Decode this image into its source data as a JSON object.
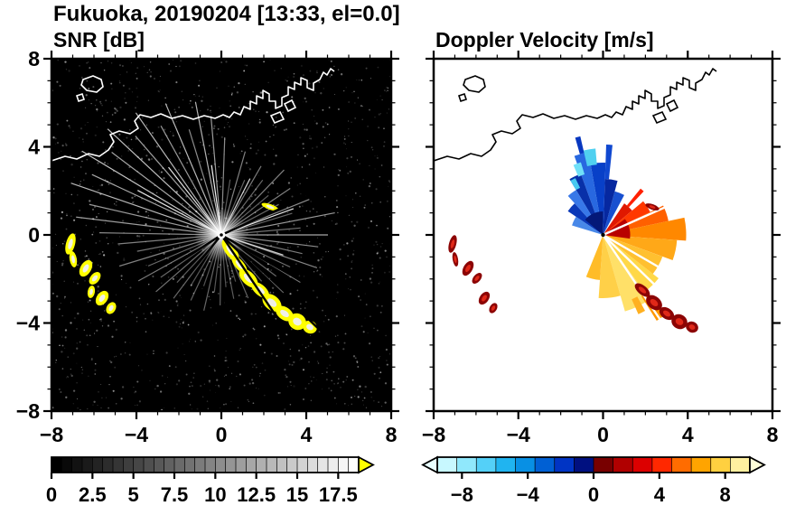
{
  "header": {
    "title": "Fukuoka, 20190204 [13:33, el=0.0]"
  },
  "chart_data": [
    {
      "id": "snr",
      "type": "heatmap",
      "title": "SNR [dB]",
      "xlabel": "",
      "ylabel": "",
      "xlim": [
        -8,
        8
      ],
      "ylim": [
        -8,
        8
      ],
      "xticks": [
        -8,
        -4,
        0,
        4,
        8
      ],
      "yticks": [
        -8,
        -4,
        0,
        4,
        8
      ],
      "minor_tick_step": 1,
      "background": "#000000",
      "coast_color": "#ffffff",
      "colorbar": {
        "range": [
          0,
          18.75
        ],
        "segments": 30,
        "scheme": "grayscale",
        "tick_labels": [
          0,
          2.5,
          5,
          7.5,
          10,
          12.5,
          15,
          17.5
        ],
        "over_arrow_color": "#ffff00"
      }
    },
    {
      "id": "vel",
      "type": "heatmap",
      "title": "Doppler Velocity [m/s]",
      "xlabel": "",
      "ylabel": "",
      "xlim": [
        -8,
        8
      ],
      "ylim": [
        -8,
        8
      ],
      "xticks": [
        -8,
        -4,
        0,
        4,
        8
      ],
      "yticks": [
        -8,
        -4,
        0,
        4,
        8
      ],
      "minor_tick_step": 1,
      "background": "#ffffff",
      "coast_color": "#000000",
      "colorbar": {
        "range": [
          -9.5,
          9.5
        ],
        "tick_labels": [
          -8,
          -4,
          0,
          4,
          8
        ],
        "colors": [
          "#c8f8ff",
          "#90e8fc",
          "#54d0f8",
          "#20b4f0",
          "#0890e4",
          "#0060d4",
          "#0034c4",
          "#001080",
          "#780000",
          "#b00000",
          "#dc0000",
          "#ff2800",
          "#ff6c00",
          "#ffa400",
          "#ffd040",
          "#fff0a0"
        ],
        "under_arrow_color": "#e8feff",
        "over_arrow_color": "#ffffd8"
      }
    }
  ],
  "map": {
    "coastline": [
      [
        0,
        113
      ],
      [
        15,
        108
      ],
      [
        28,
        111
      ],
      [
        41,
        105
      ],
      [
        53,
        108
      ],
      [
        63,
        101
      ],
      [
        69,
        92
      ],
      [
        65,
        84
      ],
      [
        75,
        80
      ],
      [
        87,
        83
      ],
      [
        96,
        77
      ],
      [
        92,
        69
      ],
      [
        98,
        62
      ],
      [
        110,
        65
      ],
      [
        121,
        61
      ],
      [
        133,
        66
      ],
      [
        145,
        63
      ],
      [
        157,
        67
      ],
      [
        169,
        63
      ],
      [
        181,
        66
      ],
      [
        190,
        62
      ],
      [
        197,
        65
      ],
      [
        202,
        59
      ],
      [
        209,
        62
      ],
      [
        213,
        53
      ],
      [
        220,
        56
      ],
      [
        220,
        47
      ],
      [
        227,
        50
      ],
      [
        227,
        41
      ],
      [
        234,
        44
      ],
      [
        234,
        35
      ],
      [
        241,
        39
      ],
      [
        241,
        47
      ],
      [
        248,
        47
      ],
      [
        248,
        55
      ],
      [
        255,
        52
      ],
      [
        255,
        43
      ],
      [
        262,
        40
      ],
      [
        262,
        31
      ],
      [
        269,
        34
      ],
      [
        269,
        26
      ],
      [
        276,
        29
      ],
      [
        276,
        21
      ],
      [
        283,
        24
      ],
      [
        283,
        32
      ],
      [
        290,
        35
      ],
      [
        290,
        27
      ],
      [
        297,
        23
      ],
      [
        301,
        15
      ],
      [
        305,
        18
      ],
      [
        309,
        11
      ],
      [
        313,
        14
      ]
    ],
    "islands": [
      [
        [
          35,
          23
        ],
        [
          46,
          19
        ],
        [
          55,
          23
        ],
        [
          57,
          31
        ],
        [
          50,
          37
        ],
        [
          39,
          35
        ],
        [
          33,
          29
        ]
      ],
      [
        [
          28,
          41
        ],
        [
          34,
          39
        ],
        [
          36,
          45
        ],
        [
          30,
          47
        ]
      ]
    ],
    "piers": [
      [
        [
          243,
          63
        ],
        [
          253,
          59
        ],
        [
          257,
          67
        ],
        [
          247,
          71
        ]
      ],
      [
        [
          258,
          50
        ],
        [
          266,
          46
        ],
        [
          270,
          54
        ],
        [
          262,
          58
        ]
      ]
    ]
  },
  "radar": {
    "snr": {
      "noise_count": 1300,
      "noise_seed": 11,
      "blob_color": "#ffff00",
      "blob_core_color": "#f0f0e8",
      "streaks": [
        [
          0,
          118,
          0.65
        ],
        [
          5,
          88,
          0.45
        ],
        [
          11,
          128,
          0.6
        ],
        [
          17,
          82,
          0.4
        ],
        [
          20,
          85,
          0.9
        ],
        [
          22,
          105,
          0.55
        ],
        [
          28,
          72,
          0.4
        ],
        [
          34,
          92,
          0.5
        ],
        [
          40,
          68,
          0.38
        ],
        [
          46,
          100,
          0.5
        ],
        [
          53,
          76,
          0.42
        ],
        [
          60,
          88,
          0.48
        ],
        [
          63,
          70,
          0.85
        ],
        [
          67,
          66,
          0.38
        ],
        [
          74,
          96,
          0.5
        ],
        [
          81,
          62,
          0.35
        ],
        [
          88,
          108,
          0.55
        ],
        [
          95,
          132,
          0.62
        ],
        [
          98,
          78,
          0.95
        ],
        [
          101,
          150,
          0.7
        ],
        [
          107,
          122,
          0.55
        ],
        [
          113,
          158,
          0.72
        ],
        [
          119,
          138,
          0.6
        ],
        [
          125,
          165,
          0.72
        ],
        [
          128,
          95,
          0.9
        ],
        [
          131,
          145,
          0.62
        ],
        [
          137,
          172,
          0.75
        ],
        [
          143,
          152,
          0.65
        ],
        [
          149,
          180,
          0.78
        ],
        [
          152,
          105,
          0.9
        ],
        [
          155,
          158,
          0.66
        ],
        [
          161,
          176,
          0.72
        ],
        [
          167,
          150,
          0.6
        ],
        [
          173,
          162,
          0.62
        ],
        [
          179,
          135,
          0.55
        ],
        [
          185,
          115,
          0.5
        ],
        [
          191,
          95,
          0.45
        ],
        [
          197,
          118,
          0.5
        ],
        [
          203,
          88,
          0.42
        ],
        [
          209,
          105,
          0.48
        ],
        [
          215,
          82,
          0.4
        ],
        [
          221,
          96,
          0.44
        ],
        [
          227,
          72,
          0.36
        ],
        [
          233,
          88,
          0.4
        ],
        [
          239,
          66,
          0.34
        ],
        [
          245,
          80,
          0.38
        ],
        [
          251,
          60,
          0.32
        ],
        [
          257,
          86,
          0.4
        ],
        [
          263,
          64,
          0.34
        ],
        [
          269,
          78,
          0.38
        ],
        [
          275,
          58,
          0.32
        ],
        [
          281,
          72,
          0.36
        ],
        [
          287,
          54,
          0.3
        ],
        [
          293,
          76,
          0.38
        ],
        [
          299,
          60,
          0.32
        ],
        [
          305,
          84,
          0.4
        ],
        [
          311,
          68,
          0.36
        ],
        [
          317,
          94,
          0.44
        ],
        [
          323,
          76,
          0.4
        ],
        [
          329,
          102,
          0.48
        ],
        [
          335,
          84,
          0.44
        ],
        [
          341,
          112,
          0.52
        ],
        [
          342,
          72,
          0.8
        ],
        [
          347,
          92,
          0.48
        ],
        [
          353,
          108,
          0.55
        ]
      ],
      "shadow_rays": [
        [
          -44,
          185
        ],
        [
          -56,
          150
        ],
        [
          -30,
          140
        ],
        [
          -129,
          110
        ],
        [
          24,
          140
        ],
        [
          -147,
          90
        ]
      ],
      "west_blobs": [
        [
          21,
          205,
          5,
          12,
          15
        ],
        [
          24,
          222,
          4,
          9,
          -10
        ],
        [
          38,
          232,
          6,
          10,
          30
        ],
        [
          48,
          243,
          5,
          8,
          40
        ],
        [
          44,
          258,
          4,
          7,
          10
        ],
        [
          56,
          265,
          6,
          9,
          35
        ],
        [
          66,
          276,
          5,
          7,
          30
        ]
      ],
      "chain_blobs": [
        [
          198,
          212,
          6,
          14,
          -35
        ],
        [
          208,
          228,
          5,
          12,
          -40
        ],
        [
          218,
          243,
          7,
          13,
          -45
        ],
        [
          231,
          256,
          6,
          12,
          -50
        ],
        [
          244,
          270,
          8,
          12,
          -50
        ],
        [
          258,
          282,
          7,
          11,
          -55
        ],
        [
          272,
          291,
          9,
          10,
          -60
        ],
        [
          286,
          297,
          7,
          8,
          -65
        ]
      ],
      "dash_blob": [
        242,
        164,
        10,
        3,
        20
      ]
    },
    "vel": {
      "blob_color": "#8c0404",
      "blob_core_color": "#e02818",
      "wedges": [
        [
          62,
          75,
          0,
          50,
          "#1850d0"
        ],
        [
          75,
          88,
          0,
          62,
          "#0628a0"
        ],
        [
          88,
          100,
          0,
          80,
          "#0840c8"
        ],
        [
          100,
          110,
          0,
          93,
          "#2868e0"
        ],
        [
          110,
          121,
          0,
          72,
          "#0830a8"
        ],
        [
          121,
          132,
          0,
          58,
          "#3878e8"
        ],
        [
          132,
          146,
          0,
          47,
          "#0a38b8"
        ],
        [
          146,
          163,
          0,
          36,
          "#4888e8"
        ],
        [
          90,
          140,
          0,
          26,
          "#041878"
        ],
        [
          95,
          103,
          78,
          96,
          "#50d0f0"
        ],
        [
          107,
          113,
          70,
          84,
          "#70e0f8"
        ],
        [
          116,
          121,
          58,
          70,
          "#48c8f0"
        ],
        [
          84,
          88,
          62,
          100,
          "#1048d0"
        ],
        [
          103,
          106,
          93,
          112,
          "#0838c0"
        ],
        [
          40,
          56,
          0,
          42,
          "#e01800"
        ],
        [
          26,
          40,
          0,
          58,
          "#ff3800"
        ],
        [
          12,
          26,
          0,
          74,
          "#ff6000"
        ],
        [
          -4,
          12,
          0,
          92,
          "#ff8800"
        ],
        [
          -20,
          -4,
          0,
          82,
          "#ffa818"
        ],
        [
          -38,
          -20,
          0,
          70,
          "#ffc030"
        ],
        [
          -8,
          36,
          0,
          30,
          "#b80000"
        ],
        [
          47,
          51,
          42,
          66,
          "#ff2000"
        ],
        [
          -54,
          -38,
          0,
          78,
          "#ffd848"
        ],
        [
          -74,
          -54,
          0,
          88,
          "#ffe068"
        ],
        [
          -94,
          -74,
          0,
          70,
          "#ffd048"
        ],
        [
          -112,
          -94,
          0,
          50,
          "#ffbc28"
        ],
        [
          -58,
          -52,
          80,
          112,
          "#ff9800"
        ],
        [
          -66,
          -61,
          78,
          96,
          "#ffb020"
        ]
      ],
      "gap_rays": [
        [
          -44,
          185
        ],
        [
          -30,
          140
        ],
        [
          24,
          140
        ],
        [
          -56,
          150
        ]
      ],
      "west_blobs": [
        [
          21,
          205,
          4,
          10,
          15
        ],
        [
          24,
          222,
          3,
          8,
          -10
        ],
        [
          38,
          232,
          5,
          9,
          30
        ],
        [
          48,
          243,
          4,
          7,
          40
        ],
        [
          56,
          265,
          5,
          8,
          35
        ],
        [
          66,
          276,
          4,
          6,
          30
        ]
      ],
      "chain_blobs": [
        [
          231,
          256,
          5,
          10,
          -50
        ],
        [
          244,
          270,
          7,
          10,
          -50
        ],
        [
          258,
          282,
          6,
          9,
          -55
        ],
        [
          272,
          291,
          8,
          9,
          -60
        ],
        [
          286,
          297,
          6,
          7,
          -65
        ]
      ],
      "dash_blob": [
        242,
        164,
        8,
        3,
        20
      ]
    }
  }
}
